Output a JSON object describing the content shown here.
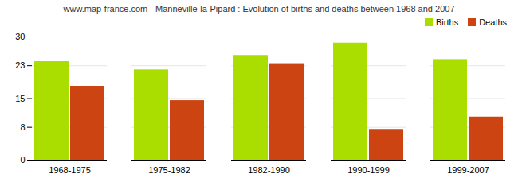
{
  "chart_data": {
    "type": "bar",
    "title": "www.map-france.com - Manneville-la-Pipard : Evolution of births and deaths between 1968 and 2007",
    "categories": [
      "1968-1975",
      "1975-1982",
      "1982-1990",
      "1990-1999",
      "1999-2007"
    ],
    "series": [
      {
        "name": "Births",
        "color": "#aadd00",
        "values": [
          24.0,
          22.0,
          25.5,
          28.5,
          24.5
        ]
      },
      {
        "name": "Deaths",
        "color": "#cc4411",
        "values": [
          18.0,
          14.5,
          23.5,
          7.5,
          10.5
        ]
      }
    ],
    "ylim": [
      0,
      30
    ],
    "yticks": [
      0,
      8,
      15,
      23,
      30
    ],
    "grid": true,
    "legend": "upper right"
  }
}
